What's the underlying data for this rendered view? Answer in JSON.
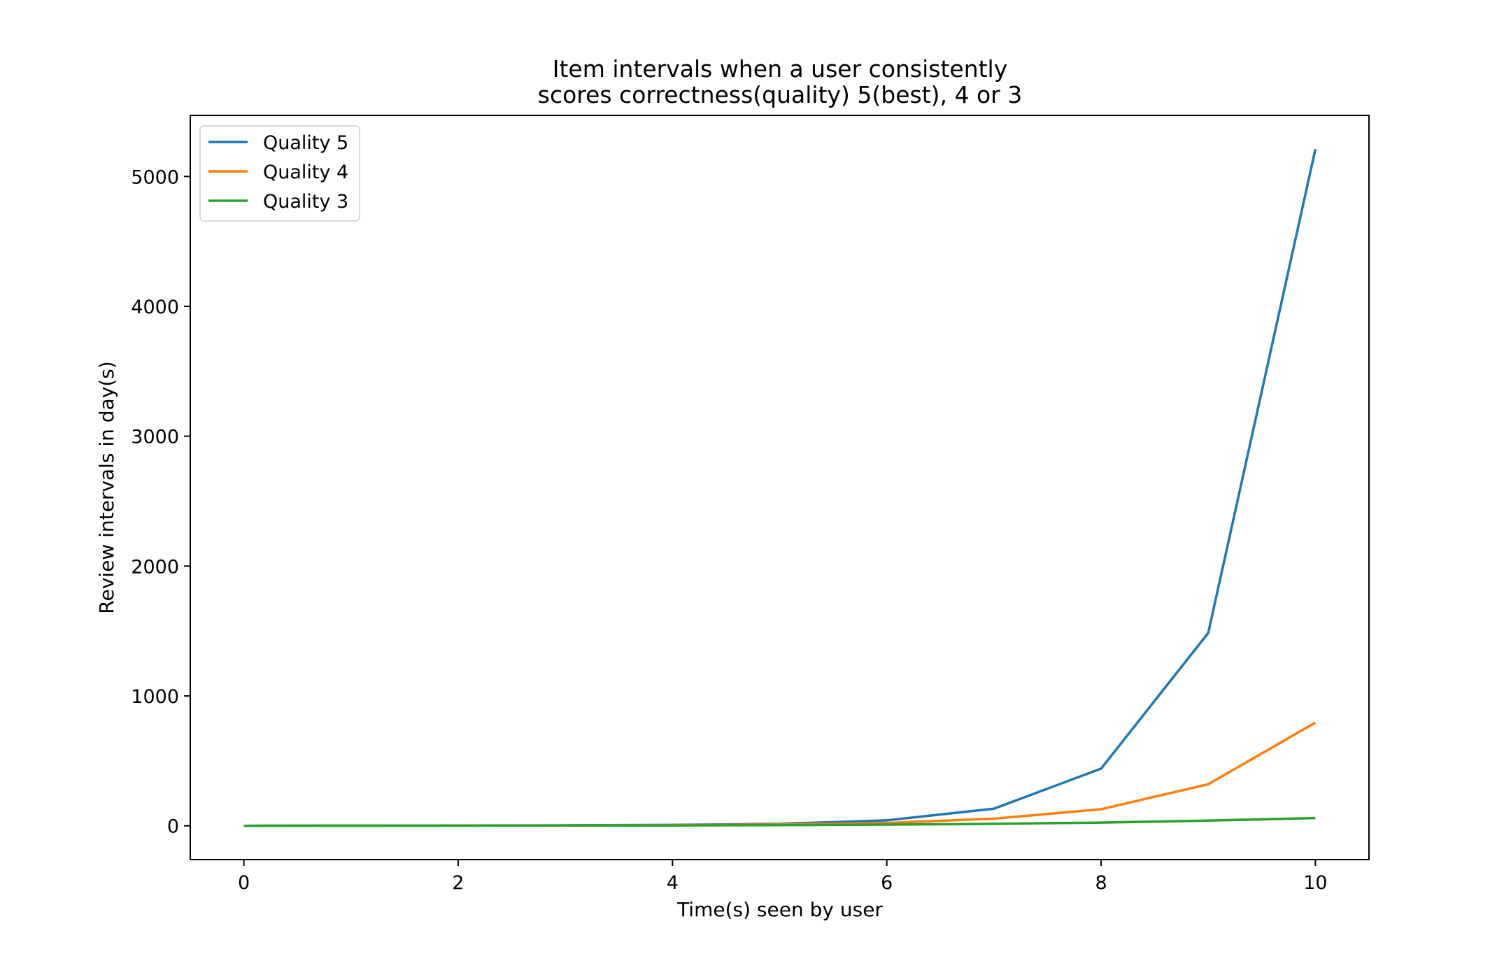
{
  "chart_data": {
    "type": "line",
    "title_lines": [
      "Item intervals when a user consistently",
      "scores correctness(quality) 5(best), 4 or 3"
    ],
    "xlabel": "Time(s) seen by user",
    "ylabel": "Review intervals in day(s)",
    "xlim": [
      -0.5,
      10.5
    ],
    "ylim": [
      -260,
      5470
    ],
    "xticks": [
      0,
      2,
      4,
      6,
      8,
      10
    ],
    "yticks": [
      0,
      1000,
      2000,
      3000,
      4000,
      5000
    ],
    "grid": false,
    "legend_position": "top-left",
    "x": [
      0,
      1,
      2,
      3,
      4,
      5,
      6,
      7,
      8,
      9,
      10
    ],
    "series": [
      {
        "name": "Quality 5",
        "color": "#1f77b4",
        "values": [
          0,
          1,
          2,
          4,
          7,
          15,
          42,
          132,
          440,
          1485,
          5210
        ]
      },
      {
        "name": "Quality 4",
        "color": "#ff7f0e",
        "values": [
          0,
          1,
          2,
          3,
          5,
          10,
          22,
          55,
          128,
          320,
          795
        ]
      },
      {
        "name": "Quality 3",
        "color": "#2ca02c",
        "values": [
          0,
          1,
          1,
          2,
          3,
          5,
          9,
          15,
          25,
          40,
          60
        ]
      }
    ]
  }
}
